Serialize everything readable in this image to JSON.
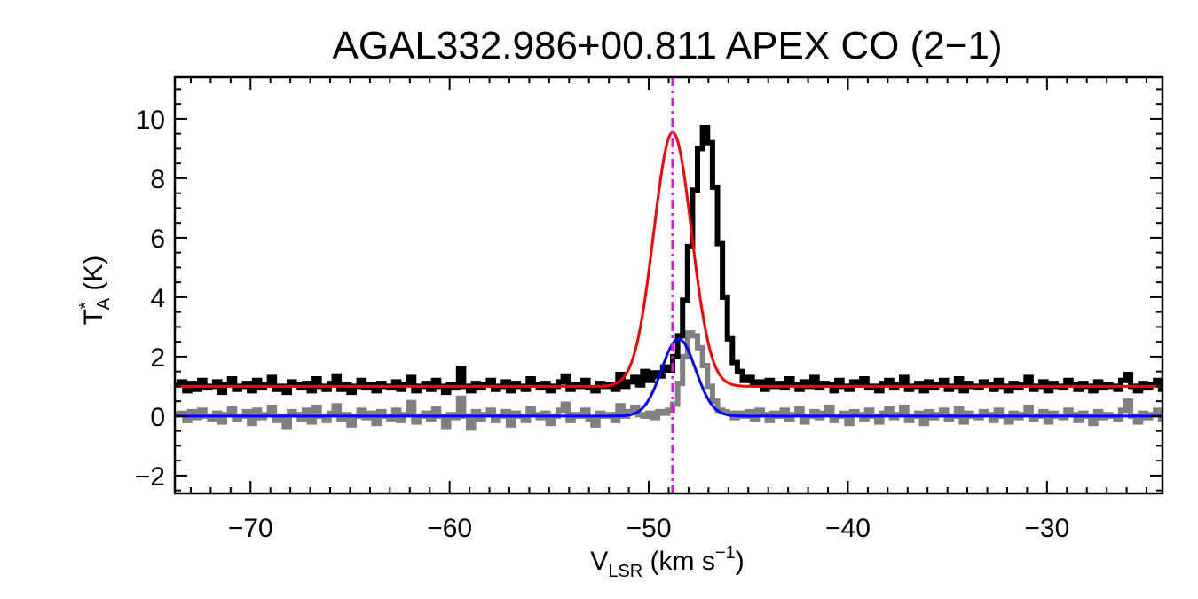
{
  "chart_data": {
    "type": "line",
    "title": "AGAL332.986+00.811  APEX CO (2−1)",
    "xlabel": {
      "main": "V",
      "sub": "LSR",
      "rest": " (km s",
      "sup": "−1",
      "end": ")"
    },
    "ylabel": {
      "main": "T",
      "sup": "*",
      "sub": "A",
      "rest": " (K)"
    },
    "xlim": [
      -73.8,
      -24.2
    ],
    "ylim": [
      -2.6,
      11.4
    ],
    "x_ticks": [
      -70,
      -60,
      -50,
      -40,
      -30
    ],
    "x_tick_labels": [
      "−70",
      "−60",
      "−50",
      "−40",
      "−30"
    ],
    "y_ticks": [
      -2,
      0,
      2,
      4,
      6,
      8,
      10
    ],
    "y_tick_labels": [
      "−2",
      "0",
      "2",
      "4",
      "6",
      "8",
      "10"
    ],
    "x_minor_step": 1,
    "y_minor_step": 0.5,
    "grid": false,
    "vline": {
      "x": -48.8,
      "color": "#ff00ff",
      "style": "dash-dot"
    },
    "series": [
      {
        "kind": "step",
        "color": "#000000",
        "x_start": -73.8,
        "x_step": 0.25,
        "values": [
          1.05,
          1.15,
          0.85,
          1.1,
          0.9,
          1.2,
          0.95,
          1.0,
          1.15,
          0.8,
          1.05,
          1.25,
          0.9,
          1.0,
          1.1,
          0.85,
          1.2,
          0.95,
          1.05,
          1.3,
          0.9,
          1.0,
          0.8,
          1.15,
          1.05,
          0.95,
          1.1,
          0.85,
          1.25,
          1.0,
          0.9,
          1.1,
          1.35,
          0.9,
          1.05,
          0.8,
          1.0,
          1.2,
          0.95,
          1.05,
          0.85,
          1.1,
          1.0,
          0.95,
          1.15,
          0.9,
          1.05,
          1.3,
          0.85,
          1.0,
          1.1,
          0.9,
          1.2,
          1.0,
          0.8,
          1.05,
          0.95,
          1.6,
          1.0,
          0.85,
          1.1,
          0.95,
          1.05,
          1.2,
          0.9,
          1.0,
          1.15,
          0.85,
          1.1,
          1.0,
          0.9,
          1.25,
          1.05,
          0.95,
          1.1,
          0.85,
          1.0,
          1.15,
          1.35,
          0.9,
          1.05,
          1.0,
          1.2,
          0.95,
          0.85,
          1.1,
          1.0,
          1.05,
          0.9,
          1.4,
          1.0,
          1.15,
          1.3,
          1.05,
          1.5,
          1.2,
          1.45,
          1.35,
          1.65,
          1.55,
          2.0,
          2.7,
          3.9,
          5.7,
          7.6,
          9.0,
          9.7,
          9.2,
          7.7,
          5.8,
          4.0,
          2.6,
          1.8,
          1.5,
          1.2,
          1.3,
          1.05,
          1.15,
          0.9,
          1.2,
          1.0,
          1.1,
          0.95,
          1.25,
          1.05,
          0.9,
          1.15,
          1.0,
          1.3,
          0.95,
          1.1,
          1.05,
          0.85,
          1.2,
          1.0,
          0.9,
          1.15,
          1.05,
          1.25,
          0.95,
          1.0,
          0.85,
          1.1,
          1.2,
          0.95,
          1.05,
          1.3,
          0.9,
          1.0,
          1.1,
          0.85,
          1.15,
          0.95,
          1.05,
          1.2,
          0.9,
          1.0,
          1.25,
          0.85,
          1.1,
          1.0,
          0.95,
          1.15,
          1.05,
          0.9,
          1.2,
          1.0,
          0.85,
          1.1,
          0.95,
          1.05,
          1.3,
          0.9,
          1.0,
          1.15,
          0.85,
          1.1,
          1.0,
          0.95,
          1.2,
          1.05,
          0.9,
          1.1,
          1.0,
          0.85,
          1.15,
          0.95,
          1.05,
          1.0,
          0.9,
          1.2,
          1.4,
          1.0,
          0.85,
          1.1,
          0.95,
          1.05,
          1.2,
          0.9,
          1.0,
          1.15,
          0.85,
          1.3,
          1.0,
          0.95
        ]
      },
      {
        "kind": "step",
        "color": "#808080",
        "x_start": -73.8,
        "x_step": 0.25,
        "values": [
          0.05,
          0.1,
          -0.15,
          0.15,
          -0.05,
          0.2,
          0.0,
          -0.1,
          0.1,
          -0.2,
          0.05,
          0.25,
          -0.1,
          0.0,
          0.15,
          -0.25,
          0.2,
          -0.05,
          0.05,
          0.3,
          -0.15,
          0.0,
          -0.35,
          0.15,
          0.05,
          -0.1,
          0.2,
          -0.2,
          0.3,
          0.0,
          -0.15,
          0.1,
          0.35,
          -0.1,
          0.05,
          -0.3,
          0.0,
          0.2,
          -0.05,
          0.1,
          -0.25,
          0.15,
          0.0,
          -0.1,
          0.2,
          -0.15,
          0.05,
          0.45,
          -0.2,
          0.0,
          0.1,
          -0.1,
          0.25,
          0.0,
          -0.35,
          0.05,
          -0.05,
          0.6,
          0.0,
          -0.4,
          0.15,
          -0.1,
          0.05,
          0.2,
          -0.15,
          0.0,
          0.15,
          -0.3,
          0.1,
          0.0,
          -0.15,
          0.25,
          0.05,
          -0.05,
          0.1,
          -0.25,
          0.0,
          0.2,
          0.4,
          -0.15,
          0.05,
          0.0,
          0.2,
          -0.1,
          -0.3,
          0.1,
          0.0,
          0.05,
          -0.15,
          0.35,
          0.0,
          0.15,
          0.3,
          0.05,
          0.0,
          0.1,
          -0.05,
          0.15,
          0.1,
          0.2,
          0.4,
          1.1,
          2.0,
          2.8,
          2.7,
          2.3,
          1.7,
          1.0,
          0.5,
          0.2,
          0.15,
          0.1,
          -0.05,
          0.1,
          0.0,
          0.15,
          -0.1,
          0.2,
          0.05,
          -0.15,
          0.1,
          0.0,
          0.2,
          -0.1,
          0.05,
          0.25,
          -0.2,
          0.0,
          0.15,
          -0.05,
          0.1,
          0.3,
          -0.15,
          0.0,
          0.1,
          -0.25,
          0.15,
          0.05,
          -0.1,
          0.2,
          0.0,
          -0.2,
          0.1,
          0.25,
          -0.05,
          0.05,
          0.3,
          -0.15,
          0.0,
          0.1,
          -0.25,
          0.15,
          -0.05,
          0.05,
          0.2,
          -0.1,
          0.0,
          0.25,
          -0.2,
          0.1,
          0.0,
          -0.05,
          0.15,
          0.05,
          -0.15,
          0.2,
          0.0,
          -0.2,
          0.1,
          -0.05,
          0.05,
          0.3,
          -0.1,
          0.0,
          0.15,
          -0.2,
          0.1,
          0.0,
          -0.05,
          0.2,
          0.05,
          -0.15,
          0.1,
          0.0,
          -0.25,
          0.15,
          -0.05,
          0.05,
          0.0,
          -0.1,
          0.2,
          0.5,
          0.0,
          -0.2,
          0.1,
          -0.05,
          0.05,
          0.2,
          -0.1,
          0.0,
          0.15,
          -0.2,
          0.3,
          0.0,
          -0.05
        ]
      },
      {
        "kind": "gaussian",
        "color": "#ff0000",
        "baseline": 1.0,
        "amplitude": 8.55,
        "center": -48.8,
        "sigma": 0.95
      },
      {
        "kind": "gaussian",
        "color": "#0000ff",
        "baseline": 0.0,
        "amplitude": 2.6,
        "center": -48.5,
        "sigma": 0.85
      }
    ]
  }
}
